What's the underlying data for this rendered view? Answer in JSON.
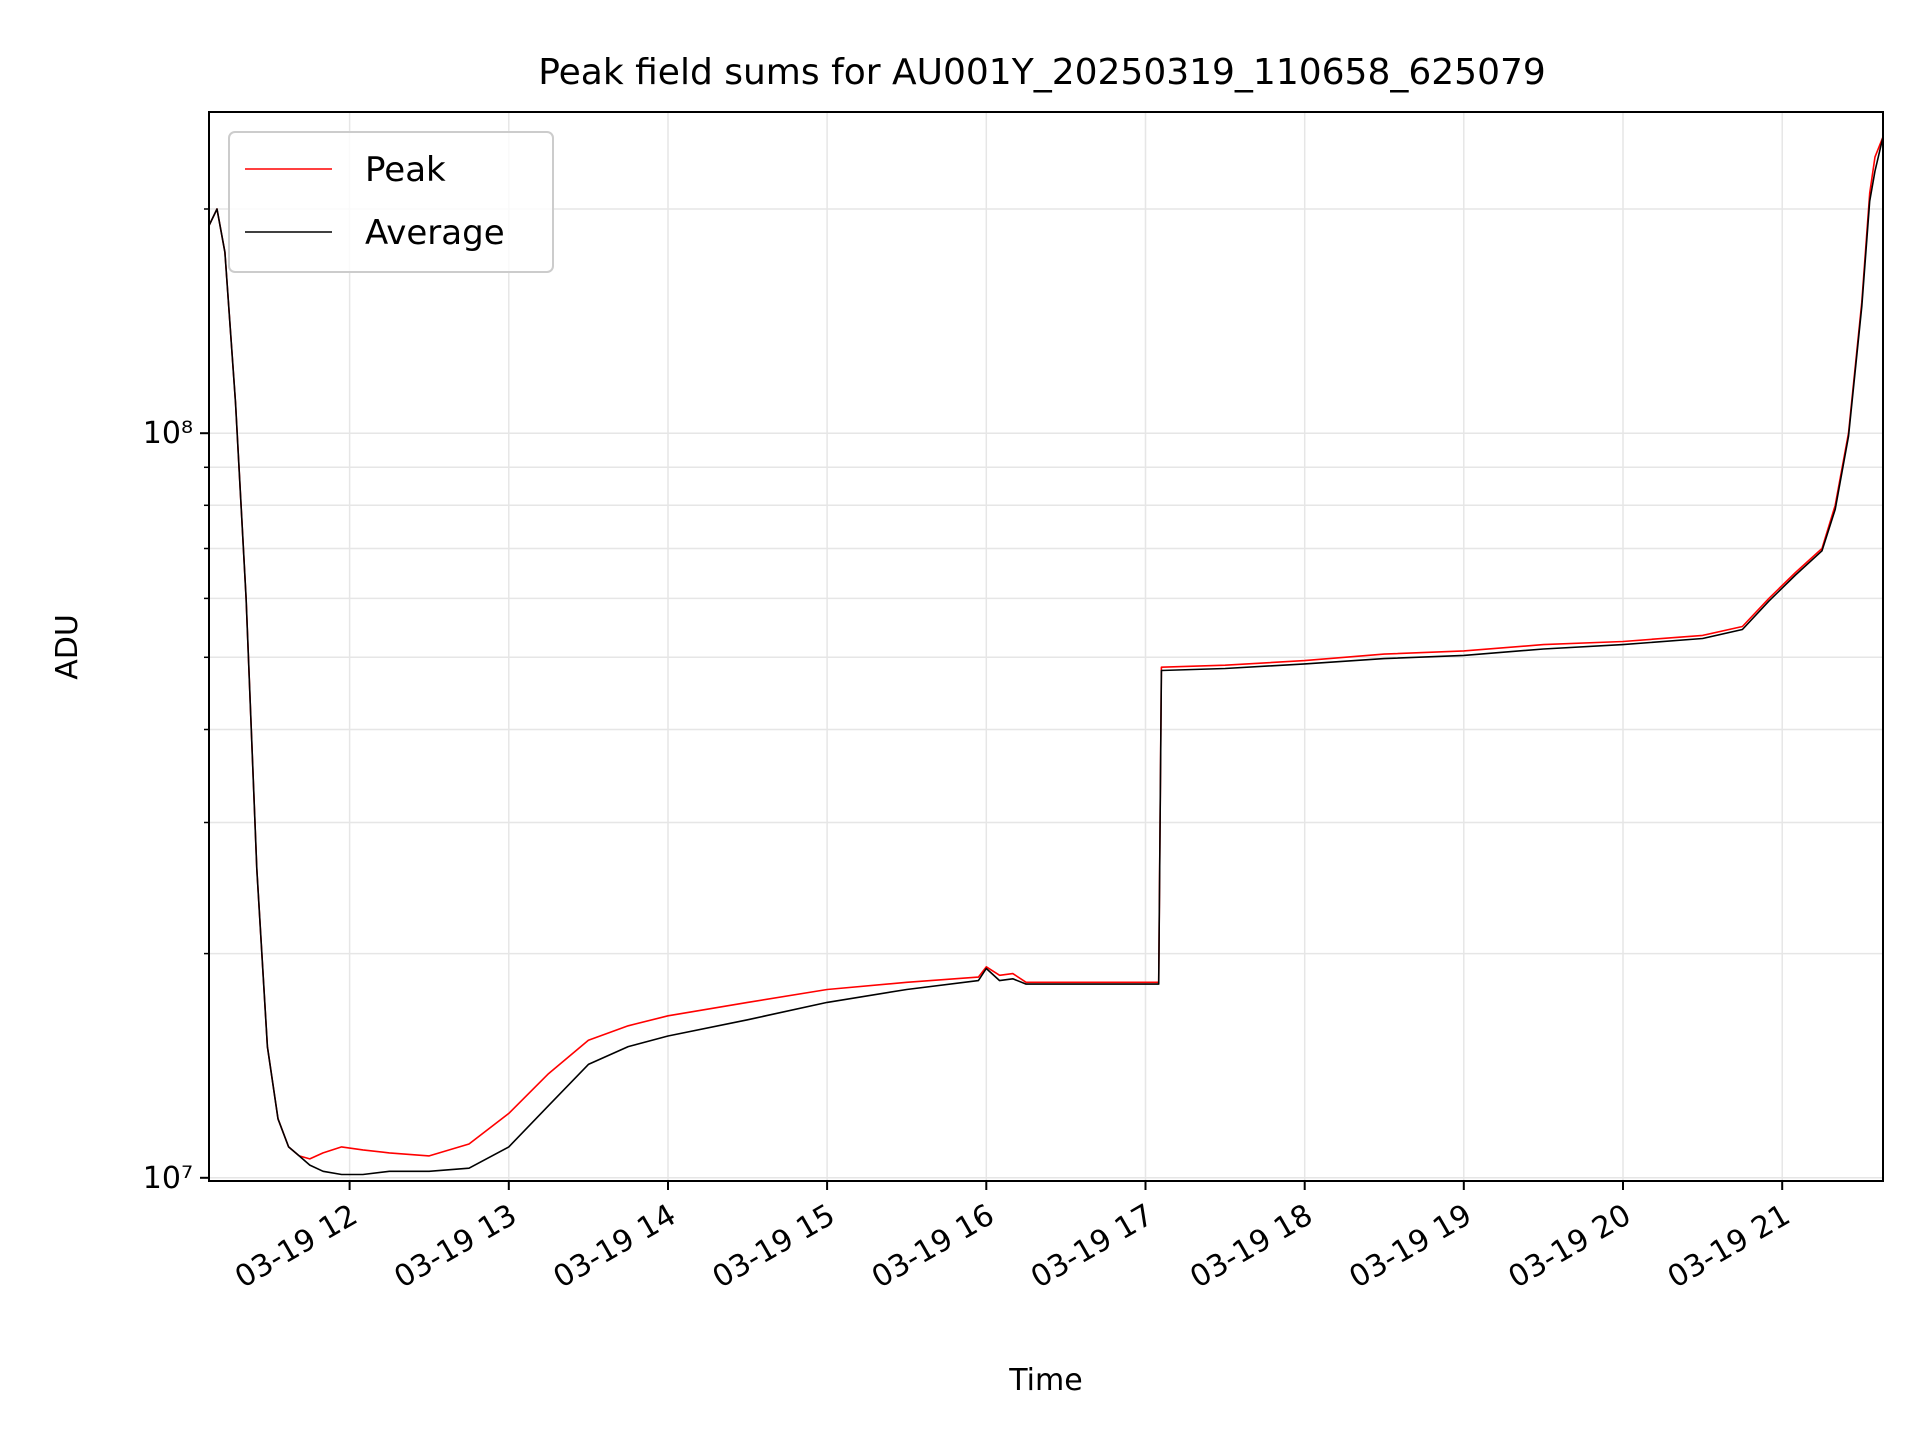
{
  "chart_data": {
    "type": "line",
    "title": "Peak field sums for AU001Y_20250319_110658_625079",
    "xlabel": "Time",
    "ylabel": "ADU",
    "y_scale": "log",
    "xlim": [
      "2025-03-19 11:07",
      "2025-03-19 21:38"
    ],
    "ylim": [
      9900000,
      270000000
    ],
    "grid": true,
    "legend_position": "top-left",
    "x_tick_labels": [
      "03-19 12",
      "03-19 13",
      "03-19 14",
      "03-19 15",
      "03-19 16",
      "03-19 17",
      "03-19 18",
      "03-19 19",
      "03-19 20",
      "03-19 21"
    ],
    "x_tick_values": [
      "2025-03-19 12:00",
      "2025-03-19 13:00",
      "2025-03-19 14:00",
      "2025-03-19 15:00",
      "2025-03-19 16:00",
      "2025-03-19 17:00",
      "2025-03-19 18:00",
      "2025-03-19 19:00",
      "2025-03-19 20:00",
      "2025-03-19 21:00"
    ],
    "y_tick_labels": [
      "10⁷",
      "10⁸"
    ],
    "y_tick_values": [
      10000000,
      100000000
    ],
    "series": [
      {
        "name": "Peak",
        "color": "#ff0000",
        "x": [
          "2025-03-19 11:07",
          "2025-03-19 11:10",
          "2025-03-19 11:13",
          "2025-03-19 11:17",
          "2025-03-19 11:21",
          "2025-03-19 11:25",
          "2025-03-19 11:29",
          "2025-03-19 11:33",
          "2025-03-19 11:37",
          "2025-03-19 11:41",
          "2025-03-19 11:45",
          "2025-03-19 11:50",
          "2025-03-19 11:57",
          "2025-03-19 12:05",
          "2025-03-19 12:15",
          "2025-03-19 12:30",
          "2025-03-19 12:45",
          "2025-03-19 13:00",
          "2025-03-19 13:15",
          "2025-03-19 13:30",
          "2025-03-19 13:45",
          "2025-03-19 14:00",
          "2025-03-19 14:30",
          "2025-03-19 15:00",
          "2025-03-19 15:30",
          "2025-03-19 15:57",
          "2025-03-19 16:00",
          "2025-03-19 16:05",
          "2025-03-19 16:10",
          "2025-03-19 16:15",
          "2025-03-19 16:30",
          "2025-03-19 16:50",
          "2025-03-19 17:05",
          "2025-03-19 17:06",
          "2025-03-19 17:30",
          "2025-03-19 18:00",
          "2025-03-19 18:30",
          "2025-03-19 19:00",
          "2025-03-19 19:30",
          "2025-03-19 20:00",
          "2025-03-19 20:30",
          "2025-03-19 20:45",
          "2025-03-19 20:55",
          "2025-03-19 21:05",
          "2025-03-19 21:15",
          "2025-03-19 21:20",
          "2025-03-19 21:25",
          "2025-03-19 21:30",
          "2025-03-19 21:33",
          "2025-03-19 21:35",
          "2025-03-19 21:38"
        ],
        "y": [
          190000000,
          200000000,
          175000000,
          110000000,
          60000000,
          26000000,
          15000000,
          12000000,
          11000000,
          10700000,
          10600000,
          10800000,
          11000000,
          10900000,
          10800000,
          10700000,
          11100000,
          12200000,
          13800000,
          15300000,
          16000000,
          16500000,
          17200000,
          17900000,
          18300000,
          18600000,
          19200000,
          18700000,
          18800000,
          18300000,
          18300000,
          18300000,
          18300000,
          48500000,
          48800000,
          49500000,
          50500000,
          51000000,
          52000000,
          52500000,
          53500000,
          55000000,
          60000000,
          65000000,
          70000000,
          80000000,
          100000000,
          150000000,
          210000000,
          235000000,
          250000000
        ]
      },
      {
        "name": "Average",
        "color": "#000000",
        "x": [
          "2025-03-19 11:07",
          "2025-03-19 11:10",
          "2025-03-19 11:13",
          "2025-03-19 11:17",
          "2025-03-19 11:21",
          "2025-03-19 11:25",
          "2025-03-19 11:29",
          "2025-03-19 11:33",
          "2025-03-19 11:37",
          "2025-03-19 11:41",
          "2025-03-19 11:45",
          "2025-03-19 11:50",
          "2025-03-19 11:57",
          "2025-03-19 12:05",
          "2025-03-19 12:15",
          "2025-03-19 12:30",
          "2025-03-19 12:45",
          "2025-03-19 13:00",
          "2025-03-19 13:15",
          "2025-03-19 13:30",
          "2025-03-19 13:45",
          "2025-03-19 14:00",
          "2025-03-19 14:30",
          "2025-03-19 15:00",
          "2025-03-19 15:30",
          "2025-03-19 15:57",
          "2025-03-19 16:00",
          "2025-03-19 16:05",
          "2025-03-19 16:10",
          "2025-03-19 16:15",
          "2025-03-19 16:30",
          "2025-03-19 16:50",
          "2025-03-19 17:05",
          "2025-03-19 17:06",
          "2025-03-19 17:30",
          "2025-03-19 18:00",
          "2025-03-19 18:30",
          "2025-03-19 19:00",
          "2025-03-19 19:30",
          "2025-03-19 20:00",
          "2025-03-19 20:30",
          "2025-03-19 20:45",
          "2025-03-19 20:55",
          "2025-03-19 21:05",
          "2025-03-19 21:15",
          "2025-03-19 21:20",
          "2025-03-19 21:25",
          "2025-03-19 21:30",
          "2025-03-19 21:33",
          "2025-03-19 21:35",
          "2025-03-19 21:38"
        ],
        "y": [
          190000000,
          200000000,
          175000000,
          110000000,
          60000000,
          26000000,
          15000000,
          12000000,
          11000000,
          10700000,
          10400000,
          10200000,
          10100000,
          10100000,
          10200000,
          10200000,
          10300000,
          11000000,
          12500000,
          14200000,
          15000000,
          15500000,
          16300000,
          17200000,
          17900000,
          18400000,
          19100000,
          18400000,
          18500000,
          18200000,
          18200000,
          18200000,
          18200000,
          48000000,
          48300000,
          49000000,
          49800000,
          50300000,
          51300000,
          52000000,
          53000000,
          54500000,
          59500000,
          64500000,
          69500000,
          79000000,
          99000000,
          148000000,
          205000000,
          225000000,
          250000000
        ]
      }
    ]
  }
}
